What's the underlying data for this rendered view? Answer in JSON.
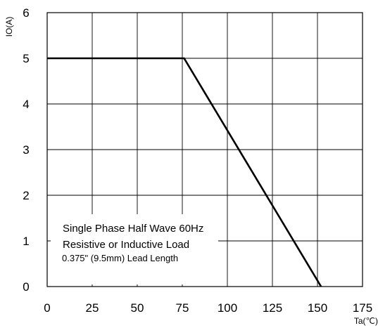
{
  "chart_data": {
    "type": "line",
    "x_axis": {
      "label": "Ta(℃)",
      "range": [
        0,
        175
      ],
      "ticks": [
        0,
        25,
        50,
        75,
        100,
        125,
        150,
        175
      ],
      "tick_labels": [
        "0",
        "25",
        "50",
        "75",
        "100",
        "125",
        "150",
        "175"
      ]
    },
    "y_axis": {
      "label": "IO(A)",
      "range": [
        0,
        6
      ],
      "ticks": [
        0,
        1,
        2,
        3,
        4,
        5,
        6
      ],
      "tick_labels": [
        "0",
        "1",
        "2",
        "3",
        "4",
        "5",
        "6"
      ]
    },
    "grid": true,
    "series": [
      {
        "x": [
          0,
          76,
          152
        ],
        "y": [
          5,
          5,
          0
        ]
      }
    ],
    "annotations": [
      "Single Phase Half Wave 60Hz",
      "Resistive or Inductive Load",
      "0.375\" (9.5mm) Lead Length"
    ]
  }
}
